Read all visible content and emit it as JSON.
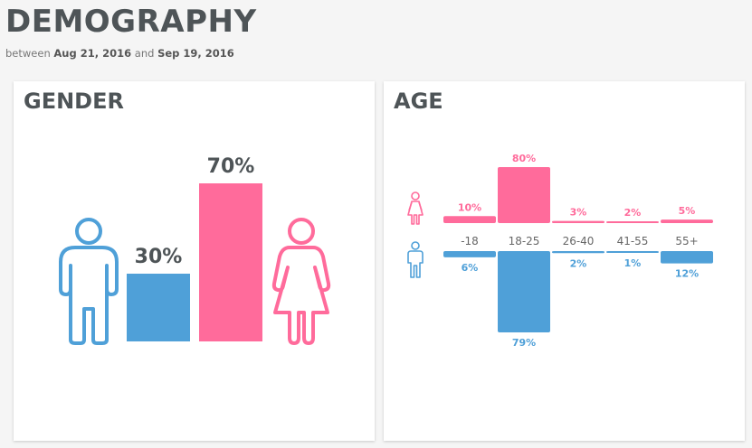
{
  "header": {
    "title": "DEMOGRAPHY",
    "date_prefix": "between",
    "date_start": "Aug 21, 2016",
    "date_mid": "and",
    "date_end": "Sep 19, 2016"
  },
  "colors": {
    "male": "#4fa0d8",
    "female": "#ff6b9b",
    "title": "#4e5457"
  },
  "icons": {
    "male": "male-figure-icon",
    "female": "female-figure-icon"
  },
  "chart_data": [
    {
      "type": "bar",
      "title": "GENDER",
      "categories": [
        "male",
        "female"
      ],
      "values": [
        30,
        70
      ],
      "labels": [
        "30%",
        "70%"
      ]
    },
    {
      "type": "bar",
      "title": "AGE",
      "categories": [
        "-18",
        "18-25",
        "26-40",
        "41-55",
        "55+"
      ],
      "series": [
        {
          "values": [
            10,
            80,
            3,
            2,
            5
          ],
          "labels": [
            "10%",
            "80%",
            "3%",
            "2%",
            "5%"
          ]
        },
        {
          "values": [
            6,
            79,
            2,
            1,
            12
          ],
          "labels": [
            "6%",
            "79%",
            "2%",
            "1%",
            "12%"
          ]
        }
      ]
    }
  ]
}
